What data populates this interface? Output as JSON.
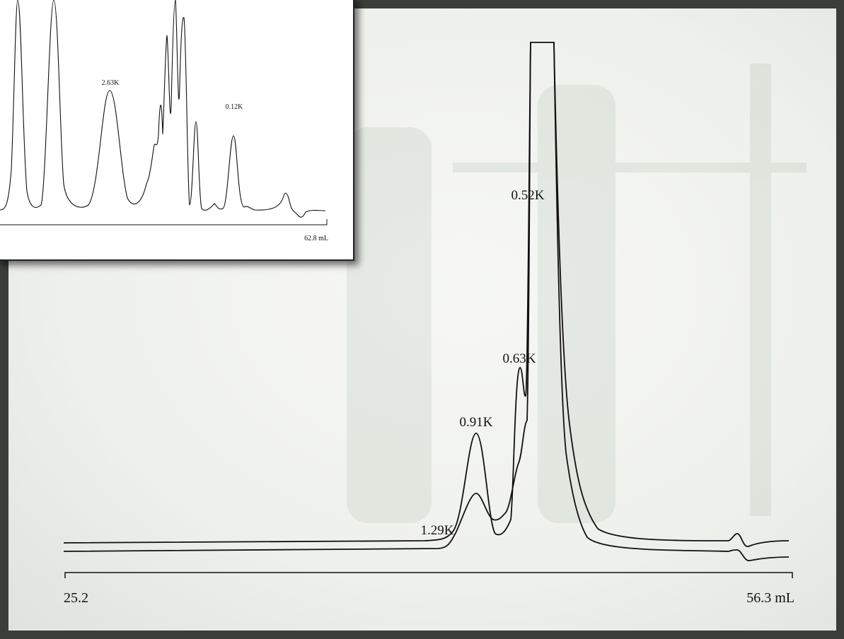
{
  "main": {
    "axis_labels": [
      "25.2",
      "56.3 mL"
    ],
    "peak_labels": [
      "1.29K",
      "0.91K",
      "0.63K",
      "0.52K"
    ]
  },
  "inset": {
    "peak_labels": [
      "2.63K",
      "0.12K"
    ],
    "axis_label": "62.8 mL"
  }
}
